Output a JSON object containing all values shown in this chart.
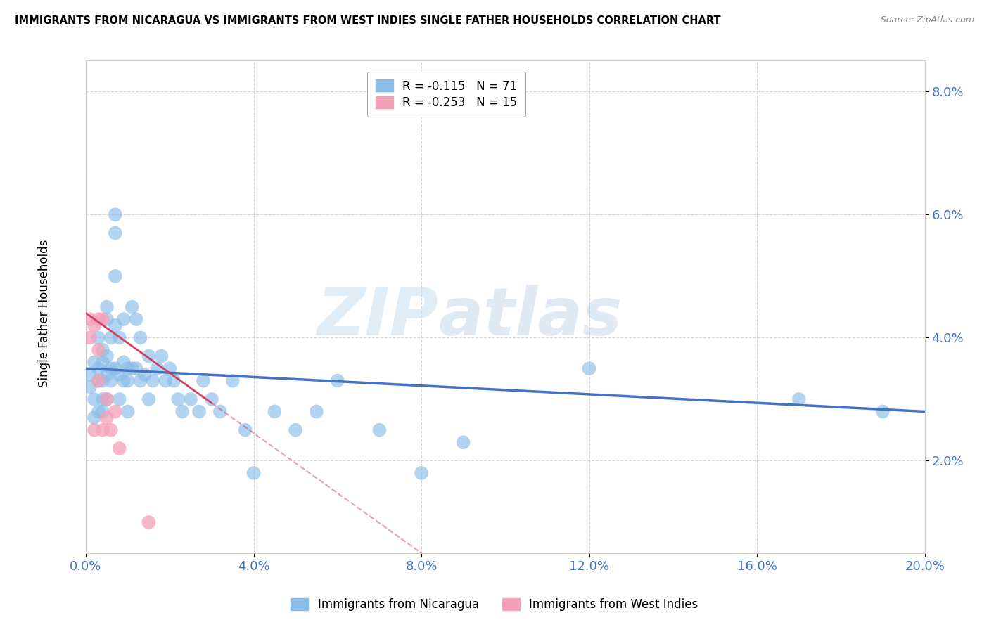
{
  "title": "IMMIGRANTS FROM NICARAGUA VS IMMIGRANTS FROM WEST INDIES SINGLE FATHER HOUSEHOLDS CORRELATION CHART",
  "source": "Source: ZipAtlas.com",
  "ylabel": "Single Father Households",
  "xlim": [
    0.0,
    0.2
  ],
  "ylim": [
    0.005,
    0.085
  ],
  "ytick_vals": [
    0.02,
    0.04,
    0.06,
    0.08
  ],
  "ytick_labels": [
    "2.0%",
    "4.0%",
    "6.0%",
    "8.0%"
  ],
  "xtick_vals": [
    0.0,
    0.04,
    0.08,
    0.12,
    0.16,
    0.2
  ],
  "xtick_labels": [
    "0.0%",
    "4.0%",
    "8.0%",
    "12.0%",
    "16.0%",
    "20.0%"
  ],
  "nicaragua_R": -0.115,
  "nicaragua_N": 71,
  "westindies_R": -0.253,
  "westindies_N": 15,
  "nicaragua_color": "#89bde8",
  "westindies_color": "#f4a0b8",
  "nicaragua_line_color": "#4472c4",
  "westindies_line_color": "#d04060",
  "watermark_zip": "ZIP",
  "watermark_atlas": "atlas",
  "nicaragua_x": [
    0.001,
    0.001,
    0.002,
    0.002,
    0.002,
    0.003,
    0.003,
    0.003,
    0.003,
    0.004,
    0.004,
    0.004,
    0.004,
    0.004,
    0.005,
    0.005,
    0.005,
    0.005,
    0.005,
    0.006,
    0.006,
    0.006,
    0.007,
    0.007,
    0.007,
    0.007,
    0.007,
    0.008,
    0.008,
    0.008,
    0.009,
    0.009,
    0.009,
    0.01,
    0.01,
    0.01,
    0.011,
    0.011,
    0.012,
    0.012,
    0.013,
    0.013,
    0.014,
    0.015,
    0.015,
    0.016,
    0.017,
    0.018,
    0.019,
    0.02,
    0.021,
    0.022,
    0.023,
    0.025,
    0.027,
    0.028,
    0.03,
    0.032,
    0.035,
    0.038,
    0.04,
    0.045,
    0.05,
    0.055,
    0.06,
    0.07,
    0.08,
    0.09,
    0.12,
    0.17,
    0.19
  ],
  "nicaragua_y": [
    0.032,
    0.034,
    0.03,
    0.036,
    0.027,
    0.035,
    0.028,
    0.04,
    0.033,
    0.03,
    0.036,
    0.028,
    0.038,
    0.033,
    0.043,
    0.037,
    0.03,
    0.034,
    0.045,
    0.035,
    0.04,
    0.033,
    0.057,
    0.06,
    0.05,
    0.042,
    0.035,
    0.04,
    0.034,
    0.03,
    0.043,
    0.033,
    0.036,
    0.035,
    0.028,
    0.033,
    0.045,
    0.035,
    0.043,
    0.035,
    0.04,
    0.033,
    0.034,
    0.037,
    0.03,
    0.033,
    0.035,
    0.037,
    0.033,
    0.035,
    0.033,
    0.03,
    0.028,
    0.03,
    0.028,
    0.033,
    0.03,
    0.028,
    0.033,
    0.025,
    0.018,
    0.028,
    0.025,
    0.028,
    0.033,
    0.025,
    0.018,
    0.023,
    0.035,
    0.03,
    0.028
  ],
  "westindies_x": [
    0.001,
    0.001,
    0.002,
    0.002,
    0.003,
    0.003,
    0.003,
    0.004,
    0.004,
    0.005,
    0.005,
    0.006,
    0.007,
    0.008,
    0.015
  ],
  "westindies_y": [
    0.043,
    0.04,
    0.042,
    0.025,
    0.043,
    0.038,
    0.033,
    0.043,
    0.025,
    0.03,
    0.027,
    0.025,
    0.028,
    0.022,
    0.01
  ],
  "nic_trendline_x0": 0.0,
  "nic_trendline_y0": 0.035,
  "nic_trendline_x1": 0.2,
  "nic_trendline_y1": 0.028,
  "wi_trendline_x0": 0.0,
  "wi_trendline_y0": 0.044,
  "wi_trendline_x1": 0.08,
  "wi_trendline_y1": 0.005
}
